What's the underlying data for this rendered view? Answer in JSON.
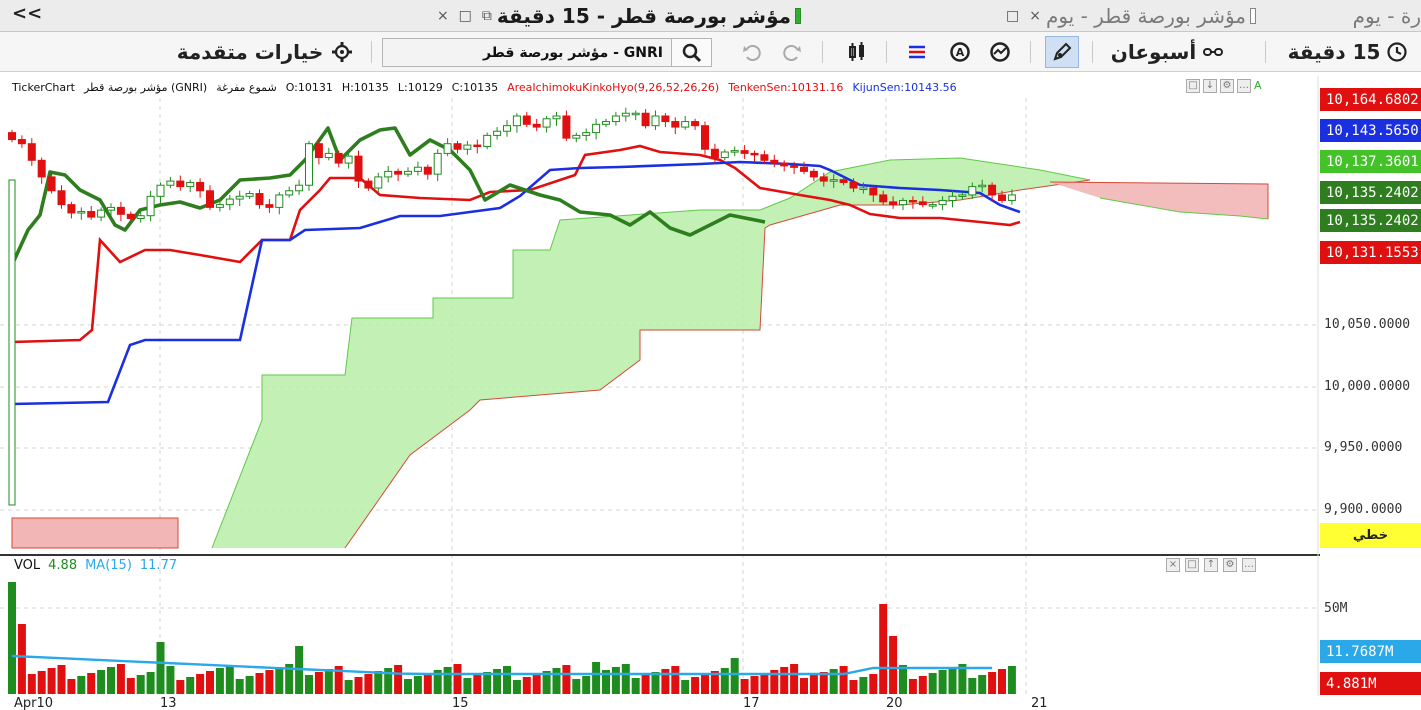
{
  "tabs": [
    {
      "title": "مؤشر بورصة قطر - 15 دقيقة",
      "active": true
    },
    {
      "title": "مؤشر بورصة قطر - يوم",
      "active": false
    },
    {
      "title": "رة - يوم",
      "active": false
    }
  ],
  "tab_bar": {
    "collapse_label": "<<",
    "close_glyph": "×",
    "max_glyph": "□",
    "float_glyph": "⧉"
  },
  "toolbar": {
    "interval_label": "15 دقيقة",
    "range_label": "أسبوعان",
    "search_value": "GNRI - مؤشر بورصة قطر",
    "advanced_options_label": "خيارات متقدمة"
  },
  "info_line": {
    "source": "TickerChart",
    "instrument": "مؤشر بورصة قطر (GNRI)",
    "candle_type": "شموع مفرغة",
    "open": "O:10131",
    "high": "H:10135",
    "low": "L:10129",
    "close": "C:10135",
    "indicator": "AreaIchimokuKinkoHyo(9,26,52,26,26)",
    "tenkan": "TenkenSen:10131.16",
    "kijun": "KijunSen:10143.56",
    "extra": "A"
  },
  "price_axis": {
    "ticks": [
      "10,050.0000",
      "10,000.0000",
      "9,950.0000",
      "9,900.0000"
    ],
    "markers": [
      {
        "value": "10,164.6802",
        "color": "#e01010"
      },
      {
        "value": "10,143.5650",
        "color": "#1a2fe0"
      },
      {
        "value": "10,137.3601",
        "color": "#44c22a"
      },
      {
        "value": "10,135.2402",
        "color": "#2e7d1e"
      },
      {
        "value": "10,135.2402",
        "color": "#2e7d1e"
      },
      {
        "value": "10,131.1553",
        "color": "#e01010"
      }
    ],
    "scale_badge": "خطي"
  },
  "volume_panel": {
    "label": "VOL",
    "value": "4.88",
    "ma_label": "MA(15)",
    "ma_value": "11.77",
    "axis_tick": "50M",
    "ma_marker": "11.7687M",
    "vol_marker": "4.881M"
  },
  "date_axis": [
    "Apr10",
    "13",
    "15",
    "17",
    "20",
    "21"
  ],
  "colors": {
    "up": "#1f8c1f",
    "down": "#e01010",
    "tenkan": "#e01010",
    "kijun": "#1a2fe0",
    "chikou": "#2e7d1e",
    "cloud_bull": "#b8efa8",
    "cloud_bear": "#f2b6b6",
    "vol_ma": "#2aa8e8"
  },
  "chart_data": {
    "type": "candlestick",
    "series": [
      {
        "name": "TenkenSen",
        "last": 10131.16
      },
      {
        "name": "KijunSen",
        "last": 10143.56
      }
    ],
    "ylim": [
      9880,
      10205
    ],
    "last_ohlc": {
      "open": 10131,
      "high": 10135,
      "low": 10129,
      "close": 10135
    },
    "close": [
      10175,
      10172,
      10160,
      10148,
      10138,
      10128,
      10122,
      10123,
      10119,
      10124,
      10126,
      10121,
      10118,
      10120,
      10134,
      10142,
      10145,
      10141,
      10144,
      10138,
      10126,
      10128,
      10132,
      10134,
      10136,
      10128,
      10126,
      10135,
      10138,
      10142,
      10172,
      10162,
      10165,
      10158,
      10163,
      10145,
      10140,
      10148,
      10152,
      10150,
      10152,
      10155,
      10150,
      10165,
      10172,
      10168,
      10171,
      10170,
      10178,
      10181,
      10185,
      10192,
      10186,
      10184,
      10190,
      10192,
      10176,
      10178,
      10180,
      10186,
      10188,
      10192,
      10194,
      10194,
      10185,
      10192,
      10188,
      10184,
      10188,
      10185,
      10168,
      10162,
      10166,
      10167,
      10165,
      10164,
      10160,
      10158,
      10156,
      10155,
      10152,
      10148,
      10145,
      10146,
      10144,
      10140,
      10140,
      10135,
      10130,
      10128,
      10131,
      10130,
      10128,
      10128,
      10131,
      10134,
      10135,
      10141,
      10142,
      10135,
      10131,
      10135
    ],
    "volume_note": "volume bars per candle, MA(15) overlay"
  }
}
